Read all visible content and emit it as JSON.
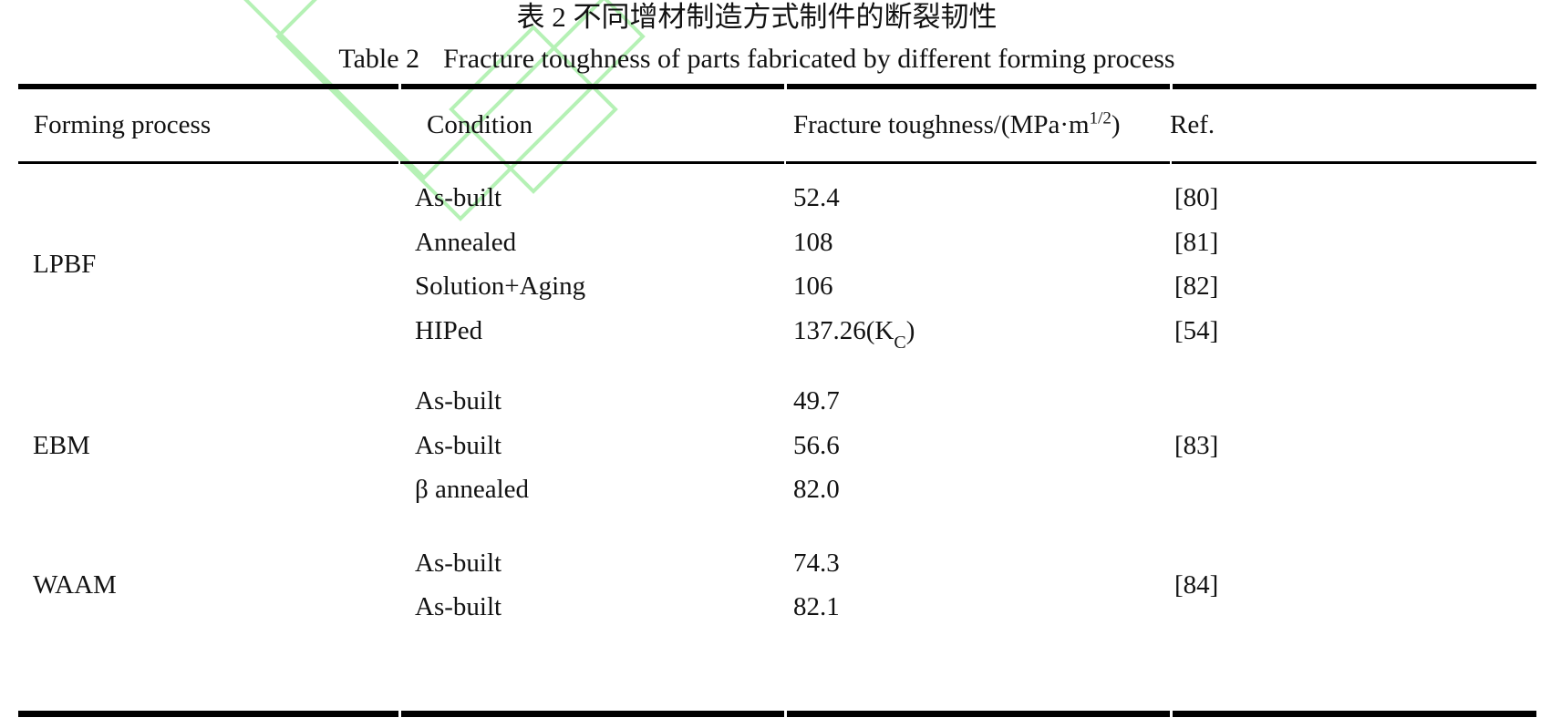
{
  "titles": {
    "zh": "表 2 不同增材制造方式制件的断裂韧性",
    "en_label": "Table 2",
    "en_text": "Fracture toughness of parts fabricated by different forming process"
  },
  "table": {
    "headers": {
      "process": "Forming process",
      "condition": "Condition",
      "toughness_pre": "Fracture toughness/(MPa·m",
      "toughness_sup": "1/2",
      "toughness_post": ")",
      "ref": "Ref."
    },
    "sections": [
      {
        "process": "LPBF",
        "rows": [
          {
            "condition": "As-built",
            "toughness": "52.4",
            "ref": "[80]"
          },
          {
            "condition": "Annealed",
            "toughness": "108",
            "ref": "[81]"
          },
          {
            "condition": "Solution+Aging",
            "toughness": "106",
            "ref": "[82]"
          },
          {
            "condition": "HIPed",
            "toughness_pre": "137.26(K",
            "toughness_sub": "C",
            "toughness_post": ")",
            "ref": "[54]"
          }
        ]
      },
      {
        "process": "EBM",
        "rows": [
          {
            "condition": "As-built",
            "toughness": "49.7",
            "ref": ""
          },
          {
            "condition": "As-built",
            "toughness": "56.6",
            "ref": "[83]"
          },
          {
            "condition": "β annealed",
            "toughness": "82.0",
            "ref": ""
          }
        ]
      },
      {
        "process": "WAAM",
        "section_ref": "[84]",
        "rows": [
          {
            "condition": "As-built",
            "toughness": "74.3",
            "ref": ""
          },
          {
            "condition": "As-built",
            "toughness": "82.1",
            "ref": ""
          }
        ]
      }
    ]
  },
  "colors": {
    "watermark_green": "#b5f1b5",
    "text": "#121212",
    "rule": "#000000"
  }
}
